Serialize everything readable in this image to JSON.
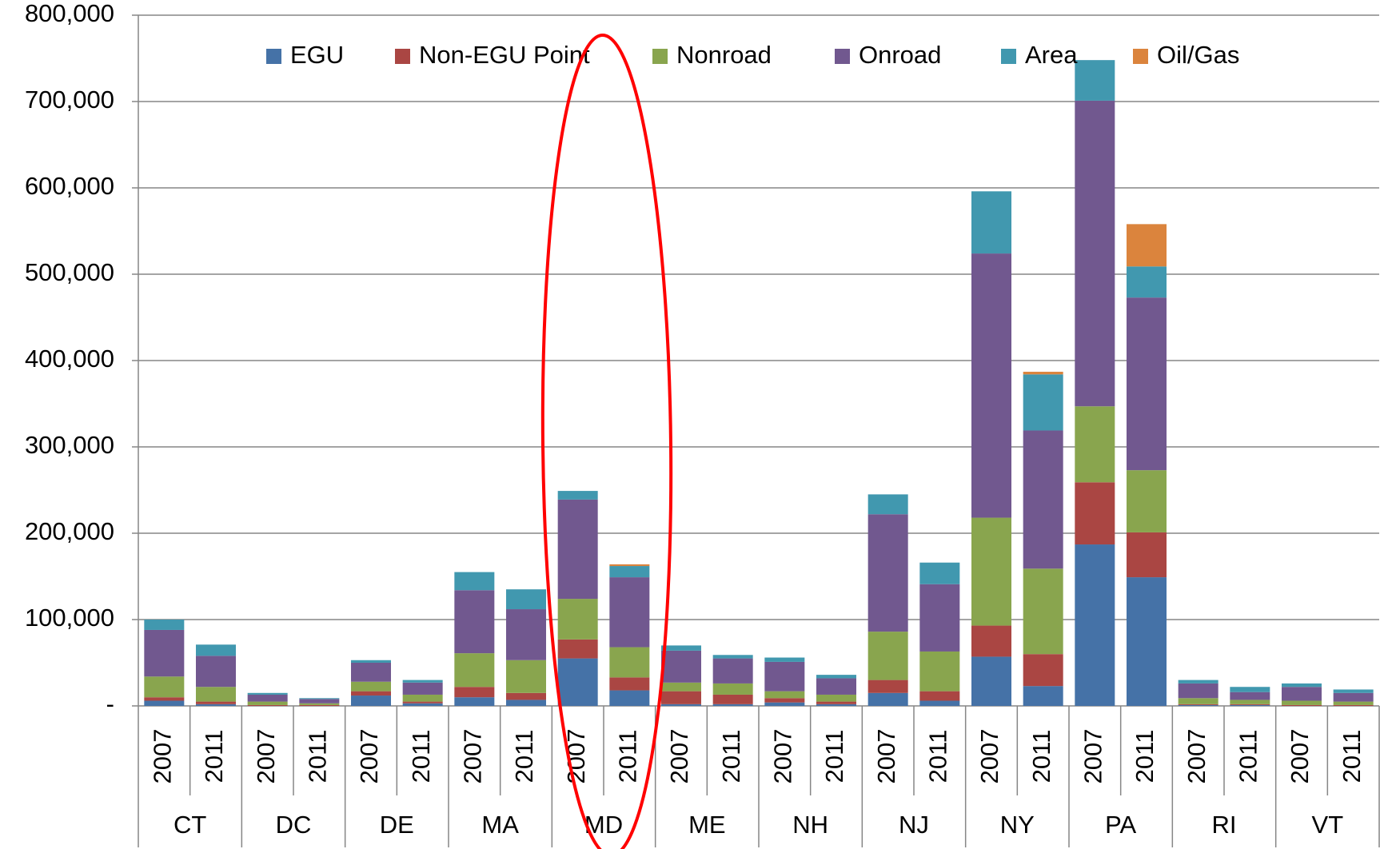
{
  "chart_data": {
    "type": "stacked_bar",
    "categories": [
      "2007",
      "2011",
      "2007",
      "2011",
      "2007",
      "2011",
      "2007",
      "2011",
      "2007",
      "2011",
      "2007",
      "2011",
      "2007",
      "2011",
      "2007",
      "2011",
      "2007",
      "2011",
      "2007",
      "2011",
      "2007",
      "2011",
      "2007",
      "2011"
    ],
    "groups": [
      "CT",
      "DC",
      "DE",
      "MA",
      "MD",
      "ME",
      "NH",
      "NJ",
      "NY",
      "PA",
      "RI",
      "VT"
    ],
    "series": [
      {
        "name": "EGU",
        "color": "#4572a7",
        "values": [
          6000,
          2000,
          0,
          0,
          12000,
          3000,
          10000,
          7000,
          55000,
          18000,
          2000,
          2000,
          4000,
          2000,
          15000,
          6000,
          57000,
          23000,
          187000,
          149000,
          1000,
          1000,
          0,
          0
        ]
      },
      {
        "name": "Non-EGU Point",
        "color": "#aa4643",
        "values": [
          4000,
          3000,
          1000,
          1000,
          5000,
          2000,
          12000,
          8000,
          22000,
          15000,
          15000,
          11000,
          5000,
          3000,
          15000,
          11000,
          36000,
          37000,
          72000,
          52000,
          1000,
          1000,
          1000,
          1000
        ]
      },
      {
        "name": "Nonroad",
        "color": "#89a54e",
        "values": [
          24000,
          17000,
          4000,
          2000,
          11000,
          8000,
          39000,
          38000,
          47000,
          35000,
          10000,
          13000,
          8000,
          8000,
          56000,
          46000,
          125000,
          99000,
          88000,
          72000,
          7000,
          5000,
          5000,
          4000
        ]
      },
      {
        "name": "Onroad",
        "color": "#71588f",
        "values": [
          54000,
          36000,
          8000,
          5000,
          22000,
          14000,
          73000,
          59000,
          115000,
          81000,
          37000,
          29000,
          34000,
          19000,
          136000,
          78000,
          306000,
          160000,
          354000,
          200000,
          17000,
          9000,
          16000,
          10000
        ]
      },
      {
        "name": "Area",
        "color": "#4198af",
        "values": [
          12000,
          13000,
          2000,
          1000,
          3000,
          3000,
          21000,
          23000,
          10000,
          13000,
          6000,
          4000,
          5000,
          4000,
          23000,
          25000,
          72000,
          65000,
          47000,
          36000,
          4000,
          6000,
          4000,
          4000
        ]
      },
      {
        "name": "Oil/Gas",
        "color": "#db843d",
        "values": [
          0,
          0,
          0,
          0,
          0,
          0,
          0,
          0,
          0,
          2000,
          0,
          0,
          0,
          0,
          0,
          0,
          0,
          3000,
          0,
          49000,
          0,
          0,
          0,
          0
        ]
      }
    ],
    "ylim": [
      0,
      800000
    ],
    "yticks": [
      {
        "value": 0,
        "label": "-"
      },
      {
        "value": 100000,
        "label": "100,000"
      },
      {
        "value": 200000,
        "label": "200,000"
      },
      {
        "value": 300000,
        "label": "300,000"
      },
      {
        "value": 400000,
        "label": "400,000"
      },
      {
        "value": 500000,
        "label": "500,000"
      },
      {
        "value": 600000,
        "label": "600,000"
      },
      {
        "value": 700000,
        "label": "700,000"
      },
      {
        "value": 800000,
        "label": "800,000"
      }
    ],
    "grid": true,
    "legend": "top"
  }
}
